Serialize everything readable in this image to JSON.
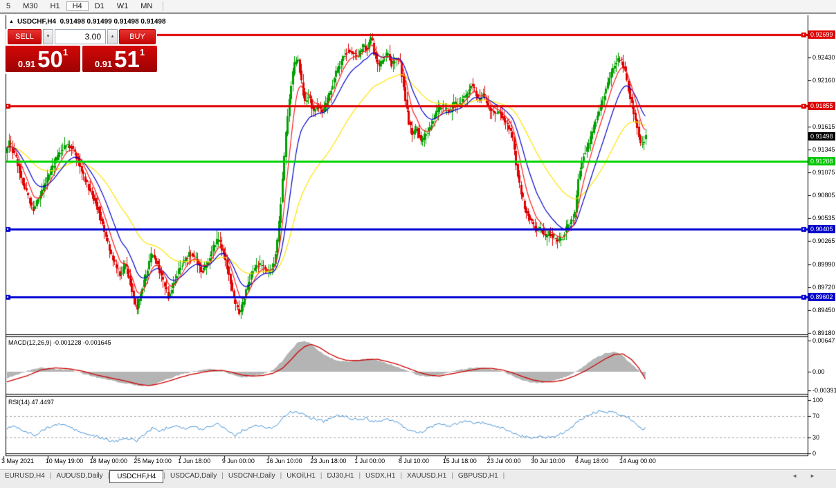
{
  "toolbar": {
    "items": [
      "5",
      "M30",
      "H1",
      "H4",
      "D1",
      "W1",
      "MN"
    ],
    "active_index": 3
  },
  "chart_header": {
    "collapse_icon": "▲",
    "title": "USDCHF,H4",
    "values": "0.91498 0.91499 0.91498 0.91498"
  },
  "trade_panel": {
    "sell_label": "SELL",
    "buy_label": "BUY",
    "volume": "3.00",
    "sell_price": {
      "small": "0.91",
      "big": "50",
      "sup": "1"
    },
    "buy_price": {
      "small": "0.91",
      "big": "51",
      "sup": "1"
    }
  },
  "price_axis": {
    "ticks": [
      0.9243,
      0.9216,
      0.91615,
      0.91345,
      0.91075,
      0.90805,
      0.90535,
      0.90265,
      0.8999,
      0.8972,
      0.8945,
      0.8918
    ],
    "levels": [
      {
        "label": "0.92699",
        "price": 0.92699,
        "bg": "#e00000",
        "line_color": "#e00000",
        "marker_left": true,
        "marker_right": true
      },
      {
        "label": "0.91855",
        "price": 0.91855,
        "bg": "#e00000",
        "line_color": "#e00000",
        "marker_left": true,
        "marker_right": true
      },
      {
        "label": "0.91208",
        "price": 0.91208,
        "bg": "#00c800",
        "line_color": "#00d400",
        "marker_left": false,
        "marker_right": false
      },
      {
        "label": "0.90405",
        "price": 0.90405,
        "bg": "#0000cc",
        "line_color": "#0000d4",
        "marker_left": true,
        "marker_right": true
      },
      {
        "label": "0.89602",
        "price": 0.89602,
        "bg": "#0000cc",
        "line_color": "#0000d4",
        "marker_left": true,
        "marker_right": true
      }
    ],
    "current": {
      "label": "0.91498",
      "price": 0.91498,
      "bg": "#000000"
    }
  },
  "time_axis": {
    "labels": [
      "3 May 2021",
      "10 May 19:00",
      "18 May 00:00",
      "25 May 10:00",
      "1 Jun 18:00",
      "9 Jun 00:00",
      "16 Jun 10:00",
      "23 Jun 18:00",
      "1 Jul 00:00",
      "8 Jul 10:00",
      "15 Jul 18:00",
      "23 Jul 00:00",
      "30 Jul 10:00",
      "6 Aug 18:00",
      "14 Aug 00:00"
    ]
  },
  "macd_panel": {
    "label": "MACD(12,26,9) -0.001228 -0.001645",
    "axis_labels": [
      "0.00647",
      "0.00",
      "-0.003916"
    ],
    "axis_values": [
      0.00647,
      0,
      -0.003916
    ]
  },
  "rsi_panel": {
    "label": "RSI(14) 47.4497",
    "axis_labels": [
      "100",
      "70",
      "30",
      "0"
    ],
    "axis_values": [
      100,
      70,
      30,
      0
    ],
    "levels": [
      70,
      30
    ]
  },
  "tabs": {
    "items": [
      "EURUSD,H4",
      "AUDUSD,Daily",
      "USDCHF,H4",
      "USDCAD,Daily",
      "USDCNH,Daily",
      "UKOil,H1",
      "DJ30,H1",
      "USDX,H1",
      "XAUUSD,H1",
      "GBPUSD,H1"
    ],
    "active_index": 2,
    "scroll_left_icon": "◄",
    "scroll_right_icon": "►"
  },
  "chart_data": {
    "type": "candlestick",
    "symbol": "USDCHF",
    "timeframe": "H4",
    "ohlc_current": [
      0.91498,
      0.91499,
      0.91498,
      0.91498
    ],
    "y_range": [
      0.8918,
      0.9293
    ],
    "candle_colors": {
      "up": "#00a000",
      "down": "#e00000"
    },
    "ma_windows": {
      "fast": 8,
      "mid": 18,
      "slow": 48
    },
    "ma_colors": {
      "fast": "#ff1c1c",
      "mid": "#0000cc",
      "slow": "#ffe400"
    },
    "price_path": [
      [
        8,
        0.9128
      ],
      [
        14,
        0.9142
      ],
      [
        20,
        0.913
      ],
      [
        26,
        0.9118
      ],
      [
        32,
        0.9098
      ],
      [
        40,
        0.908
      ],
      [
        48,
        0.9063
      ],
      [
        56,
        0.9075
      ],
      [
        64,
        0.909
      ],
      [
        72,
        0.9105
      ],
      [
        80,
        0.912
      ],
      [
        88,
        0.9132
      ],
      [
        96,
        0.914
      ],
      [
        104,
        0.9138
      ],
      [
        112,
        0.9125
      ],
      [
        120,
        0.9105
      ],
      [
        128,
        0.909
      ],
      [
        136,
        0.9078
      ],
      [
        144,
        0.906
      ],
      [
        152,
        0.9035
      ],
      [
        160,
        0.9012
      ],
      [
        168,
        0.8995
      ],
      [
        175,
        0.8985
      ],
      [
        182,
        0.9
      ],
      [
        190,
        0.8972
      ],
      [
        198,
        0.8945
      ],
      [
        205,
        0.8968
      ],
      [
        212,
        0.8988
      ],
      [
        220,
        0.9012
      ],
      [
        228,
        0.9
      ],
      [
        236,
        0.8978
      ],
      [
        244,
        0.896
      ],
      [
        252,
        0.8978
      ],
      [
        260,
        0.8995
      ],
      [
        268,
        0.9005
      ],
      [
        276,
        0.9012
      ],
      [
        284,
        0.9005
      ],
      [
        292,
        0.899
      ],
      [
        300,
        0.9
      ],
      [
        308,
        0.9018
      ],
      [
        316,
        0.9028
      ],
      [
        324,
        0.9012
      ],
      [
        332,
        0.8985
      ],
      [
        340,
        0.8952
      ],
      [
        348,
        0.894
      ],
      [
        356,
        0.8968
      ],
      [
        364,
        0.8988
      ],
      [
        372,
        0.8998
      ],
      [
        380,
        0.8998
      ],
      [
        388,
        0.8988
      ],
      [
        396,
        0.8998
      ],
      [
        402,
        0.903
      ],
      [
        408,
        0.909
      ],
      [
        414,
        0.9155
      ],
      [
        420,
        0.9205
      ],
      [
        426,
        0.9235
      ],
      [
        431,
        0.9242
      ],
      [
        436,
        0.9215
      ],
      [
        441,
        0.919
      ],
      [
        447,
        0.92
      ],
      [
        453,
        0.9178
      ],
      [
        460,
        0.9185
      ],
      [
        468,
        0.9178
      ],
      [
        476,
        0.9198
      ],
      [
        483,
        0.9218
      ],
      [
        490,
        0.9232
      ],
      [
        497,
        0.9246
      ],
      [
        504,
        0.9252
      ],
      [
        511,
        0.9248
      ],
      [
        518,
        0.9242
      ],
      [
        525,
        0.9258
      ],
      [
        531,
        0.9252
      ],
      [
        537,
        0.9268
      ],
      [
        543,
        0.9242
      ],
      [
        549,
        0.9232
      ],
      [
        555,
        0.9242
      ],
      [
        561,
        0.9248
      ],
      [
        567,
        0.9234
      ],
      [
        573,
        0.9242
      ],
      [
        579,
        0.9236
      ],
      [
        585,
        0.92
      ],
      [
        591,
        0.9168
      ],
      [
        597,
        0.915
      ],
      [
        603,
        0.9162
      ],
      [
        609,
        0.9142
      ],
      [
        615,
        0.9152
      ],
      [
        621,
        0.9158
      ],
      [
        627,
        0.9172
      ],
      [
        633,
        0.918
      ],
      [
        639,
        0.9186
      ],
      [
        645,
        0.9182
      ],
      [
        651,
        0.9178
      ],
      [
        657,
        0.919
      ],
      [
        663,
        0.9185
      ],
      [
        669,
        0.9196
      ],
      [
        675,
        0.9196
      ],
      [
        681,
        0.9212
      ],
      [
        687,
        0.9203
      ],
      [
        693,
        0.9192
      ],
      [
        699,
        0.92
      ],
      [
        705,
        0.9186
      ],
      [
        711,
        0.918
      ],
      [
        717,
        0.9176
      ],
      [
        723,
        0.918
      ],
      [
        729,
        0.9168
      ],
      [
        735,
        0.9162
      ],
      [
        741,
        0.915
      ],
      [
        747,
        0.9112
      ],
      [
        753,
        0.9085
      ],
      [
        759,
        0.9065
      ],
      [
        765,
        0.9055
      ],
      [
        771,
        0.9045
      ],
      [
        777,
        0.9038
      ],
      [
        783,
        0.904
      ],
      [
        789,
        0.903
      ],
      [
        795,
        0.9036
      ],
      [
        801,
        0.903
      ],
      [
        807,
        0.9026
      ],
      [
        813,
        0.903
      ],
      [
        819,
        0.9042
      ],
      [
        825,
        0.9048
      ],
      [
        831,
        0.9058
      ],
      [
        837,
        0.9105
      ],
      [
        843,
        0.9128
      ],
      [
        849,
        0.9135
      ],
      [
        855,
        0.915
      ],
      [
        861,
        0.9168
      ],
      [
        867,
        0.9182
      ],
      [
        873,
        0.9198
      ],
      [
        879,
        0.9212
      ],
      [
        885,
        0.9228
      ],
      [
        891,
        0.9238
      ],
      [
        897,
        0.9242
      ],
      [
        903,
        0.9228
      ],
      [
        909,
        0.9205
      ],
      [
        915,
        0.9182
      ],
      [
        921,
        0.9162
      ],
      [
        927,
        0.9138
      ],
      [
        933,
        0.915
      ]
    ],
    "macd": {
      "hist_color": "#b4b4b4",
      "signal_color": "#cc0000",
      "points": [
        [
          8,
          -0.0014,
          -0.0022
        ],
        [
          40,
          0.0002,
          -0.0008
        ],
        [
          60,
          0.0009,
          0.0004
        ],
        [
          80,
          0.0006,
          0.0008
        ],
        [
          100,
          0.0004,
          0.0006
        ],
        [
          120,
          -0.0004,
          0.0001
        ],
        [
          140,
          -0.0012,
          -0.0007
        ],
        [
          160,
          -0.0018,
          -0.0013
        ],
        [
          180,
          -0.0024,
          -0.0019
        ],
        [
          200,
          -0.0029,
          -0.0026
        ],
        [
          215,
          -0.003,
          -0.0029
        ],
        [
          230,
          -0.0022,
          -0.0025
        ],
        [
          245,
          -0.0014,
          -0.0019
        ],
        [
          260,
          -0.0006,
          -0.0012
        ],
        [
          275,
          -0.0001,
          -0.0006
        ],
        [
          290,
          0.0003,
          -0.0002
        ],
        [
          305,
          0.0006,
          0.0002
        ],
        [
          320,
          0.0002,
          0.0003
        ],
        [
          335,
          -0.0006,
          -0.0001
        ],
        [
          350,
          -0.0012,
          -0.0007
        ],
        [
          365,
          -0.0009,
          -0.0009
        ],
        [
          380,
          -0.0005,
          -0.0008
        ],
        [
          395,
          0.0004,
          -0.0003
        ],
        [
          408,
          0.0022,
          0.0007
        ],
        [
          420,
          0.0045,
          0.0024
        ],
        [
          430,
          0.006,
          0.004
        ],
        [
          440,
          0.0064,
          0.0052
        ],
        [
          450,
          0.0058,
          0.0057
        ],
        [
          462,
          0.0042,
          0.005
        ],
        [
          475,
          0.003,
          0.0038
        ],
        [
          488,
          0.0023,
          0.0029
        ],
        [
          500,
          0.0021,
          0.0024
        ],
        [
          515,
          0.0024,
          0.0023
        ],
        [
          530,
          0.0027,
          0.0025
        ],
        [
          545,
          0.0024,
          0.0026
        ],
        [
          560,
          0.0017,
          0.0021
        ],
        [
          575,
          0.001,
          0.0015
        ],
        [
          590,
          0.0001,
          0.0007
        ],
        [
          605,
          -0.0008,
          -0.0001
        ],
        [
          620,
          -0.0011,
          -0.0007
        ],
        [
          635,
          -0.0007,
          -0.0009
        ],
        [
          650,
          -0.0001,
          -0.0005
        ],
        [
          665,
          0.0004,
          -0.0001
        ],
        [
          680,
          0.0008,
          0.0003
        ],
        [
          695,
          0.0009,
          0.0007
        ],
        [
          710,
          0.0006,
          0.0007
        ],
        [
          725,
          0.0001,
          0.0004
        ],
        [
          740,
          -0.0008,
          -0.0002
        ],
        [
          755,
          -0.0018,
          -0.001
        ],
        [
          770,
          -0.0023,
          -0.0017
        ],
        [
          785,
          -0.0023,
          -0.0021
        ],
        [
          800,
          -0.0019,
          -0.0021
        ],
        [
          815,
          -0.0012,
          -0.0017
        ],
        [
          830,
          -0.0002,
          -0.0009
        ],
        [
          845,
          0.0013,
          0.0001
        ],
        [
          860,
          0.0028,
          0.0014
        ],
        [
          875,
          0.0038,
          0.0027
        ],
        [
          888,
          0.0042,
          0.0036
        ],
        [
          900,
          0.0033,
          0.0037
        ],
        [
          912,
          0.0016,
          0.0026
        ],
        [
          922,
          0.0004,
          0.001
        ],
        [
          928,
          -0.0006,
          -0.0004
        ],
        [
          933,
          -0.0012,
          -0.0016
        ]
      ]
    },
    "rsi": {
      "line_color": "#3f8fd6",
      "value": 47.4497,
      "points": [
        [
          8,
          45
        ],
        [
          18,
          52
        ],
        [
          28,
          48
        ],
        [
          40,
          38
        ],
        [
          52,
          34
        ],
        [
          64,
          45
        ],
        [
          76,
          52
        ],
        [
          88,
          55
        ],
        [
          100,
          50
        ],
        [
          112,
          42
        ],
        [
          124,
          36
        ],
        [
          136,
          33
        ],
        [
          148,
          28
        ],
        [
          158,
          24
        ],
        [
          168,
          22
        ],
        [
          178,
          30
        ],
        [
          188,
          26
        ],
        [
          198,
          24
        ],
        [
          208,
          35
        ],
        [
          220,
          47
        ],
        [
          232,
          42
        ],
        [
          244,
          50
        ],
        [
          256,
          53
        ],
        [
          268,
          46
        ],
        [
          280,
          50
        ],
        [
          292,
          45
        ],
        [
          304,
          52
        ],
        [
          316,
          56
        ],
        [
          328,
          44
        ],
        [
          340,
          34
        ],
        [
          352,
          44
        ],
        [
          364,
          50
        ],
        [
          376,
          52
        ],
        [
          388,
          46
        ],
        [
          398,
          52
        ],
        [
          408,
          66
        ],
        [
          418,
          76
        ],
        [
          428,
          80
        ],
        [
          438,
          72
        ],
        [
          448,
          67
        ],
        [
          458,
          64
        ],
        [
          468,
          60
        ],
        [
          478,
          67
        ],
        [
          488,
          71
        ],
        [
          498,
          69
        ],
        [
          508,
          66
        ],
        [
          518,
          61
        ],
        [
          528,
          67
        ],
        [
          538,
          59
        ],
        [
          548,
          62
        ],
        [
          558,
          65
        ],
        [
          568,
          61
        ],
        [
          578,
          54
        ],
        [
          588,
          45
        ],
        [
          598,
          41
        ],
        [
          608,
          39
        ],
        [
          618,
          47
        ],
        [
          628,
          52
        ],
        [
          638,
          55
        ],
        [
          648,
          51
        ],
        [
          658,
          55
        ],
        [
          668,
          58
        ],
        [
          678,
          62
        ],
        [
          688,
          55
        ],
        [
          698,
          58
        ],
        [
          708,
          52
        ],
        [
          718,
          50
        ],
        [
          728,
          47
        ],
        [
          738,
          41
        ],
        [
          748,
          34
        ],
        [
          758,
          31
        ],
        [
          768,
          29
        ],
        [
          778,
          33
        ],
        [
          788,
          29
        ],
        [
          798,
          32
        ],
        [
          808,
          35
        ],
        [
          818,
          42
        ],
        [
          828,
          52
        ],
        [
          838,
          62
        ],
        [
          848,
          70
        ],
        [
          858,
          76
        ],
        [
          868,
          80
        ],
        [
          878,
          77
        ],
        [
          888,
          79
        ],
        [
          898,
          71
        ],
        [
          908,
          68
        ],
        [
          918,
          57
        ],
        [
          928,
          44
        ],
        [
          933,
          47
        ]
      ]
    }
  }
}
